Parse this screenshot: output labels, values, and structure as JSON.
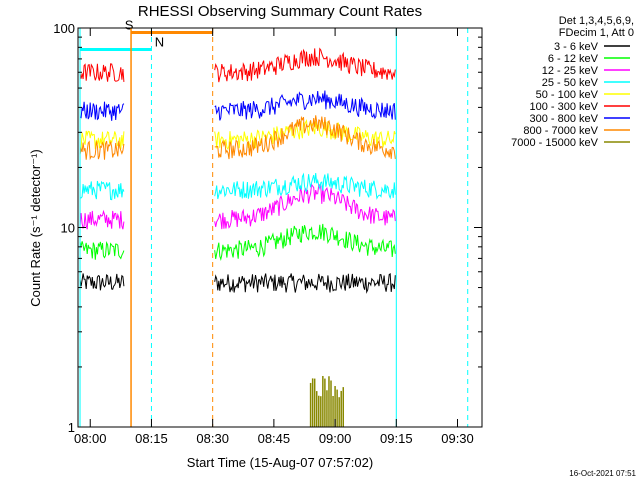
{
  "chart_data": {
    "type": "line",
    "title": "RHESSI Observing Summary Count Rates",
    "xlabel": "Start Time (15-Aug-07 07:57:02)",
    "ylabel": "Count Rate (s⁻¹ detector⁻¹)",
    "y_scale": "log",
    "ylim": [
      1,
      100
    ],
    "xlim_minutes": [
      -3,
      96
    ],
    "x_ticks": [
      {
        "label": "08:00",
        "minute": 0
      },
      {
        "label": "08:15",
        "minute": 15
      },
      {
        "label": "08:30",
        "minute": 30
      },
      {
        "label": "08:45",
        "minute": 45
      },
      {
        "label": "09:00",
        "minute": 60
      },
      {
        "label": "09:15",
        "minute": 75
      },
      {
        "label": "09:30",
        "minute": 90
      }
    ],
    "y_tick_labels": [
      {
        "label": "1",
        "value": 1
      },
      {
        "label": "10",
        "value": 10
      },
      {
        "label": "100",
        "value": 100
      }
    ],
    "legend_header": [
      "Det 1,3,4,5,6,9,",
      "FDecim 1, Att 0"
    ],
    "series": [
      {
        "name": "3 - 6 keV",
        "color": "#000000",
        "level": 5.3,
        "peak": 1.0
      },
      {
        "name": "6 - 12 keV",
        "color": "#00ff00",
        "level": 7.7,
        "peak": 1.25
      },
      {
        "name": "12 - 25 keV",
        "color": "#ff00ff",
        "level": 11.0,
        "peak": 1.35
      },
      {
        "name": "25 - 50 keV",
        "color": "#00ffff",
        "level": 15.5,
        "peak": 1.1
      },
      {
        "name": "50 - 100 keV",
        "color": "#ffff00",
        "level": 27.5,
        "peak": 1.15
      },
      {
        "name": "100 - 300 keV",
        "color": "#ff0000",
        "level": 60.0,
        "peak": 1.2
      },
      {
        "name": "300 - 800 keV",
        "color": "#0000ff",
        "level": 38.5,
        "peak": 1.15
      },
      {
        "name": "800 - 7000 keV",
        "color": "#ff8800",
        "level": 24.5,
        "peak": 1.35
      },
      {
        "name": "7000 - 15000 keV",
        "color": "#888800",
        "level": 1.0,
        "peak": 1.0
      }
    ],
    "data_gaps_minutes": [
      [
        8.5,
        30.5
      ],
      [
        75.0,
        96.0
      ]
    ],
    "flags": [
      {
        "label": "S",
        "color": "#ff8800",
        "start_minute": 10.0,
        "end_minute": 30.0,
        "level": 95
      },
      {
        "label": "N",
        "color": "#00ffff",
        "start_minute": -2.5,
        "end_minute": 15.0,
        "level": 78
      }
    ],
    "night_markers_minutes": [
      15.0,
      92.5
    ],
    "day_markers_minutes": [
      -2.5,
      75.0
    ],
    "saa_markers_minutes": [
      30.0
    ],
    "saa_solid_marker_minute": 10.0
  },
  "timestamp": "16-Oct-2021 07:51"
}
